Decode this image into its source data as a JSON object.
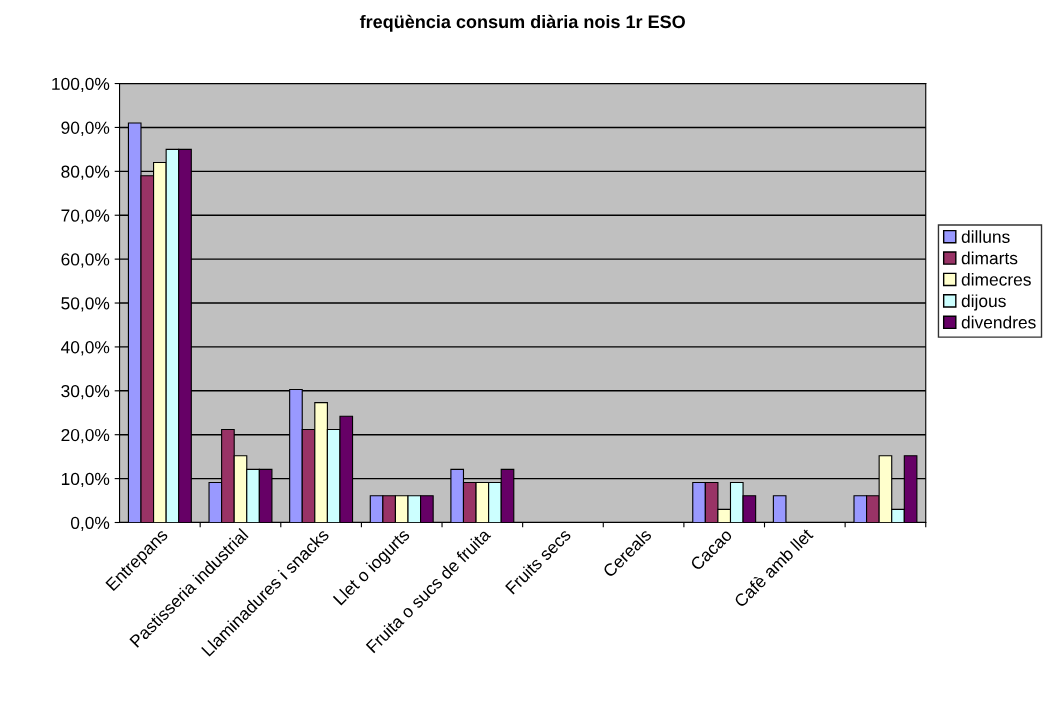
{
  "chart_data": {
    "type": "bar",
    "title": "freqüència consum diària nois 1r ESO",
    "categories": [
      "Entrepans",
      "Pastisseria industrial",
      "Llaminadures i snacks",
      "Llet o iogurts",
      "Fruita o sucs de fruita",
      "Fruits secs",
      "Cereals",
      "Cacao",
      "Cafè amb llet",
      null
    ],
    "series": [
      {
        "name": "dilluns",
        "color": "#9999ff",
        "values": [
          91,
          9.1,
          30.3,
          6.1,
          12.1,
          0,
          0,
          9.1,
          6.1,
          6.1
        ]
      },
      {
        "name": "dimarts",
        "color": "#993366",
        "values": [
          79,
          21.2,
          21.2,
          6.1,
          9.1,
          0,
          0,
          9.1,
          0,
          6.1
        ]
      },
      {
        "name": "dimecres",
        "color": "#ffffcc",
        "values": [
          82,
          15.2,
          27.3,
          6.1,
          9.1,
          0,
          0,
          3,
          0,
          15.2
        ]
      },
      {
        "name": "dijous",
        "color": "#ccffff",
        "values": [
          85,
          12.1,
          21.2,
          6.1,
          9.1,
          0,
          0,
          9.1,
          0,
          3
        ]
      },
      {
        "name": "divendres",
        "color": "#660066",
        "values": [
          85,
          12.1,
          24.2,
          6.1,
          12.1,
          0,
          0,
          6.1,
          0,
          15.2
        ]
      }
    ],
    "ylim": [
      0,
      100
    ],
    "yticks": [
      {
        "value": 0,
        "label": "0,0%"
      },
      {
        "value": 10,
        "label": "10,0%"
      },
      {
        "value": 20,
        "label": "20,0%"
      },
      {
        "value": 30,
        "label": "30,0%"
      },
      {
        "value": 40,
        "label": "40,0%"
      },
      {
        "value": 50,
        "label": "50,0%"
      },
      {
        "value": 60,
        "label": "60,0%"
      },
      {
        "value": 70,
        "label": "70,0%"
      },
      {
        "value": 80,
        "label": "80,0%"
      },
      {
        "value": 90,
        "label": "90,0%"
      },
      {
        "value": 100,
        "label": "100,0%"
      }
    ],
    "grid": "y",
    "legend": "right"
  }
}
